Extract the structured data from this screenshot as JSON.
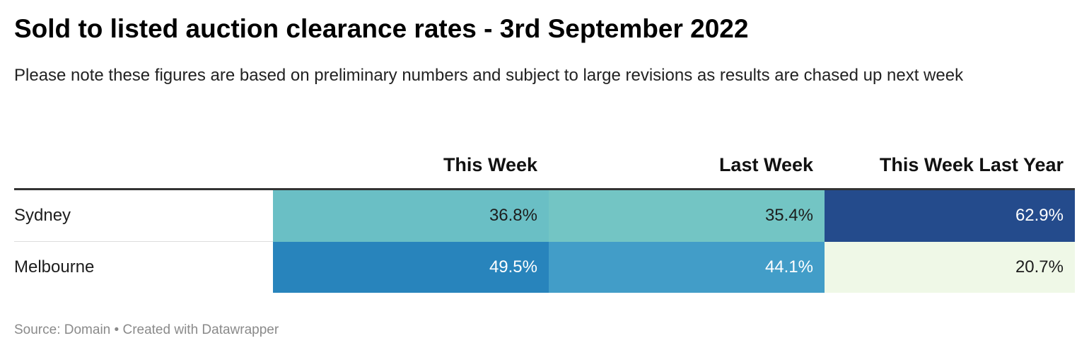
{
  "title": "Sold to listed auction clearance rates - 3rd September 2022",
  "subtitle": "Please note these figures are based on preliminary numbers and subject to large revisions as results are chased up next week",
  "footer": {
    "source_label": "Source:",
    "source": "Domain",
    "separator": "•",
    "credit": "Created with Datawrapper"
  },
  "chart_data": {
    "type": "table",
    "columns": [
      "",
      "This Week",
      "Last Week",
      "This Week Last Year"
    ],
    "rows": [
      {
        "city": "Sydney",
        "values": [
          "36.8%",
          "35.4%",
          "62.9%"
        ],
        "numeric": [
          36.8,
          35.4,
          62.9
        ],
        "cell_colors": [
          "#6abfc5",
          "#73c5c4",
          "#244b8c"
        ],
        "text_colors": [
          "#1d1d1d",
          "#1d1d1d",
          "#ffffff"
        ]
      },
      {
        "city": "Melbourne",
        "values": [
          "49.5%",
          "44.1%",
          "20.7%"
        ],
        "numeric": [
          49.5,
          44.1,
          20.7
        ],
        "cell_colors": [
          "#2884bc",
          "#429dc8",
          "#eff8e7"
        ],
        "text_colors": [
          "#ffffff",
          "#ffffff",
          "#1d1d1d"
        ]
      }
    ]
  }
}
